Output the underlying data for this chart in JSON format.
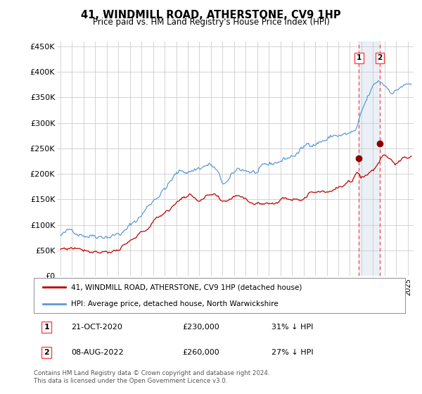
{
  "title": "41, WINDMILL ROAD, ATHERSTONE, CV9 1HP",
  "subtitle": "Price paid vs. HM Land Registry's House Price Index (HPI)",
  "footer": "Contains HM Land Registry data © Crown copyright and database right 2024.\nThis data is licensed under the Open Government Licence v3.0.",
  "legend_line1": "41, WINDMILL ROAD, ATHERSTONE, CV9 1HP (detached house)",
  "legend_line2": "HPI: Average price, detached house, North Warwickshire",
  "transaction1_date": "21-OCT-2020",
  "transaction1_price": "£230,000",
  "transaction1_hpi": "31% ↓ HPI",
  "transaction1_x": 2020.79,
  "transaction1_y": 230000,
  "transaction2_date": "08-AUG-2022",
  "transaction2_price": "£260,000",
  "transaction2_hpi": "27% ↓ HPI",
  "transaction2_x": 2022.58,
  "transaction2_y": 260000,
  "hpi_color": "#5B9BD5",
  "price_color": "#C00000",
  "marker_color": "#8B0000",
  "vline_color": "#FF4444",
  "bg_highlight_color": "#DCE6F1",
  "ylim": [
    0,
    460000
  ],
  "xlim": [
    1994.7,
    2025.5
  ],
  "yticks": [
    0,
    50000,
    100000,
    150000,
    200000,
    250000,
    300000,
    350000,
    400000,
    450000
  ],
  "ytick_labels": [
    "£0",
    "£50K",
    "£100K",
    "£150K",
    "£200K",
    "£250K",
    "£300K",
    "£350K",
    "£400K",
    "£450K"
  ],
  "grid_color": "#CCCCCC",
  "bg_color": "#FFFFFF"
}
